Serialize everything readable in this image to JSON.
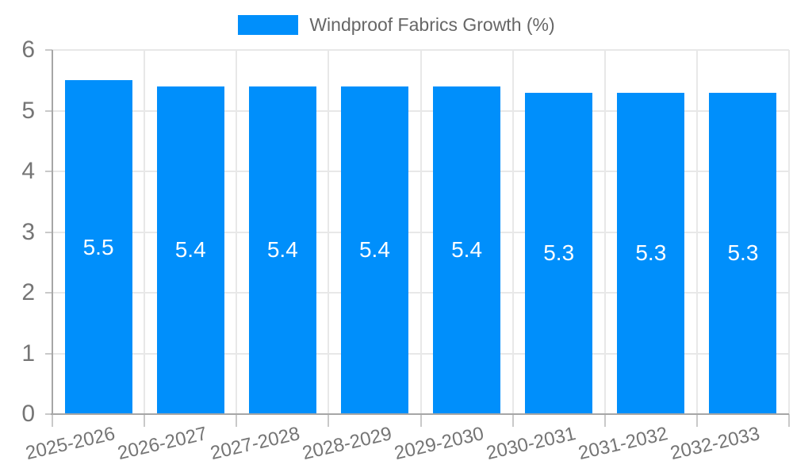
{
  "chart_data": {
    "type": "bar",
    "title": "",
    "categories": [
      "2025-2026",
      "2026-2027",
      "2027-2028",
      "2028-2029",
      "2029-2030",
      "2030-2031",
      "2031-2032",
      "2032-2033"
    ],
    "series": [
      {
        "name": "Windproof Fabrics Growth (%)",
        "values": [
          5.5,
          5.4,
          5.4,
          5.4,
          5.4,
          5.3,
          5.3,
          5.3
        ]
      }
    ],
    "value_labels": [
      "5.5",
      "5.4",
      "5.4",
      "5.4",
      "5.4",
      "5.3",
      "5.3",
      "5.3"
    ],
    "xlabel": "",
    "ylabel": "",
    "ylim": [
      0,
      6
    ],
    "yticks": [
      0,
      1,
      2,
      3,
      4,
      5,
      6
    ],
    "grid": true,
    "legend_position": "top",
    "x_label_rotation_deg": -13
  },
  "colors": {
    "bar": "#008FFB",
    "value_label": "#ffffff",
    "grid": "#e8e8e8",
    "axis": "#a6a6a6",
    "tick_mark": "#c9c9c9",
    "tick_text": "#757575",
    "legend_text": "#666666",
    "background": "#ffffff"
  }
}
